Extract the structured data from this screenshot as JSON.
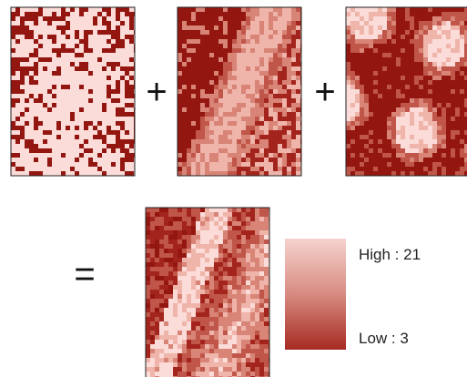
{
  "operators": {
    "plus_1": "+",
    "plus_2": "+",
    "equals": "="
  },
  "legend": {
    "high": "High : 21",
    "low": "Low : 3"
  }
}
